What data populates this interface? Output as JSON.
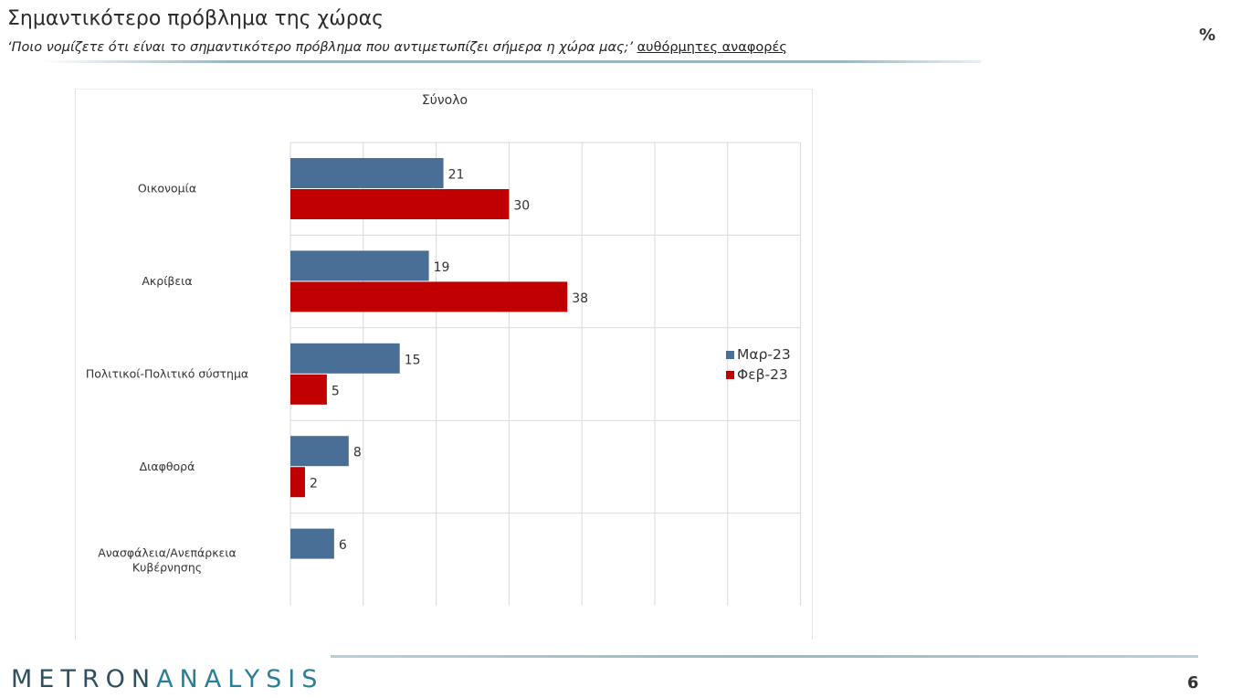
{
  "header": {
    "title": "Σημαντικότερο πρόβλημα της χώρας",
    "question": "‘Ποιο νομίζετε ότι  είναι το σημαντικότερο πρόβλημα που αντιμετωπίζει σήμερα η χώρα μας;’",
    "note": "αυθόρμητες αναφορές",
    "unit": "%"
  },
  "footer": {
    "logo_part1": "METRON",
    "logo_part2": "ANALYSIS",
    "page_number": "6"
  },
  "colors": {
    "Μαρ-23": "#4a6f97",
    "Φεβ-23": "#c00000"
  },
  "chart_data": {
    "type": "bar",
    "orientation": "horizontal",
    "title": "Σύνολο",
    "categories": [
      "Οικονομία",
      "Ακρίβεια",
      "Πολιτικοί-Πολιτικό σύστημα",
      "Διαφθορά",
      "Ανασφάλεια/Ανεπάρκεια Κυβέρνησης"
    ],
    "series": [
      {
        "name": "Μαρ-23",
        "values": [
          21,
          19,
          15,
          8,
          6
        ]
      },
      {
        "name": "Φεβ-23",
        "values": [
          30,
          38,
          5,
          2,
          null
        ]
      }
    ],
    "xlim": [
      0,
      70
    ],
    "grid": true,
    "legend_position": "right"
  }
}
